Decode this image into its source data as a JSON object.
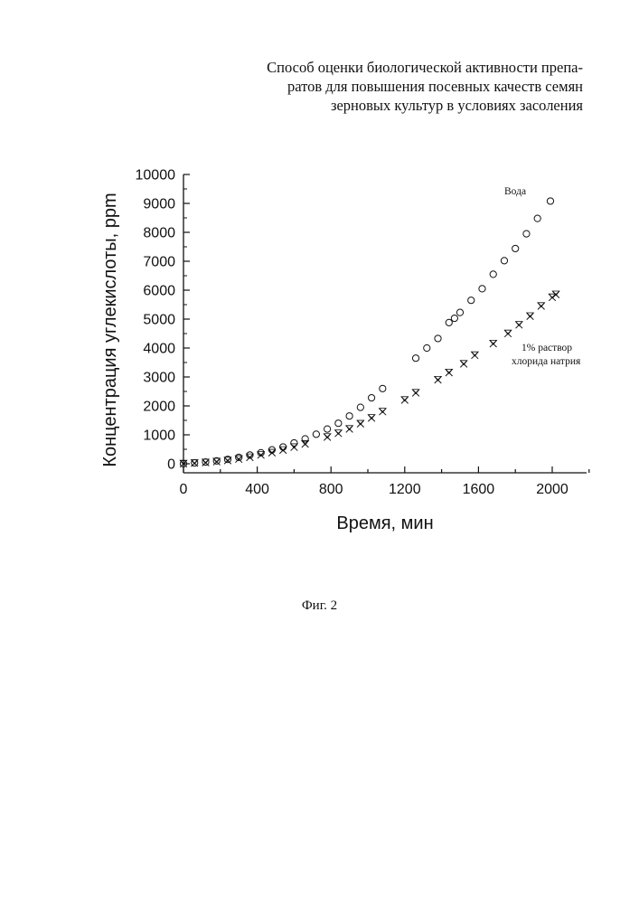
{
  "header": {
    "title_lines": [
      "Способ оценки биологической активности препа-",
      "ратов для повышения посевных качеств семян",
      "зерновых культур в условиях засоления"
    ]
  },
  "caption": "Фиг. 2",
  "chart_data": {
    "type": "scatter",
    "xlabel": "Время, мин",
    "ylabel": "Концентрация углекислоты, ppm",
    "xlim": [
      0,
      2200
    ],
    "ylim": [
      -300,
      10000
    ],
    "xticks": [
      "0",
      "400",
      "800",
      "1200",
      "1600",
      "2000"
    ],
    "yticks": [
      "0",
      "1000",
      "2000",
      "3000",
      "4000",
      "5000",
      "6000",
      "7000",
      "8000",
      "9000",
      "10000"
    ],
    "series": [
      {
        "name": "Вода",
        "marker": "circle",
        "x": [
          0,
          60,
          120,
          180,
          240,
          300,
          360,
          420,
          480,
          540,
          600,
          660,
          720,
          780,
          840,
          900,
          960,
          1020,
          1080,
          1260,
          1320,
          1380,
          1440,
          1470,
          1500,
          1560,
          1620,
          1680,
          1740,
          1800,
          1860,
          1920,
          1990
        ],
        "y": [
          0,
          30,
          60,
          100,
          150,
          220,
          300,
          380,
          480,
          580,
          720,
          860,
          1020,
          1200,
          1400,
          1650,
          1950,
          2280,
          2600,
          3650,
          4000,
          4330,
          4880,
          5030,
          5230,
          5650,
          6050,
          6550,
          7020,
          7440,
          7950,
          8480,
          9080
        ]
      },
      {
        "name": "1% раствор хлорида натрия",
        "marker": "x-cross",
        "x": [
          0,
          60,
          120,
          180,
          240,
          300,
          360,
          420,
          480,
          540,
          600,
          660,
          780,
          840,
          900,
          960,
          1020,
          1080,
          1200,
          1260,
          1380,
          1440,
          1520,
          1580,
          1680,
          1760,
          1820,
          1880,
          1940,
          2000,
          2020
        ],
        "y": [
          0,
          20,
          40,
          70,
          110,
          160,
          220,
          300,
          380,
          470,
          570,
          680,
          920,
          1050,
          1200,
          1380,
          1580,
          1800,
          2200,
          2450,
          2900,
          3150,
          3450,
          3750,
          4150,
          4500,
          4800,
          5100,
          5450,
          5750,
          5850
        ]
      }
    ]
  }
}
